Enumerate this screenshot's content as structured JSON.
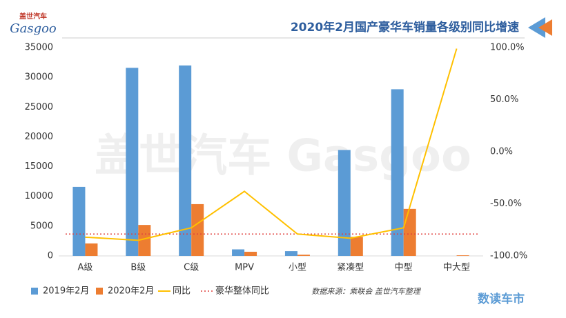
{
  "chart_data": {
    "type": "bar_line",
    "title": "2020年2月国产豪华车销量各级别同比增速",
    "logo": "盖世汽车",
    "logo_sub": "Gasgoo",
    "watermark": "盖世汽车 Gasgoo",
    "source": "数据来源：乘联会    盖世汽车整理",
    "brand": "数读车市",
    "categories": [
      "A级",
      "B级",
      "C级",
      "MPV",
      "小型",
      "紧凑型",
      "中型",
      "中大型"
    ],
    "series": [
      {
        "name": "2019年2月",
        "color": "#5b9bd5",
        "kind": "bar",
        "values": [
          11600,
          31600,
          32000,
          1100,
          800,
          17800,
          28000,
          0
        ]
      },
      {
        "name": "2020年2月",
        "color": "#ed7d31",
        "kind": "bar",
        "values": [
          2100,
          5200,
          8700,
          700,
          200,
          3200,
          7900,
          100
        ]
      },
      {
        "name": "同比",
        "color": "#ffc000",
        "kind": "line",
        "axis": "y2",
        "values": [
          -82,
          -85,
          -73,
          -38,
          -79,
          -83,
          -73,
          99
        ]
      }
    ],
    "reference_line": {
      "name": "豪华整体同比",
      "color": "#e0403d",
      "axis": "y2",
      "value": -79
    },
    "ylim": [
      0,
      35000
    ],
    "yticks": [
      0,
      5000,
      10000,
      15000,
      20000,
      25000,
      30000,
      35000
    ],
    "y2lim": [
      -100,
      100
    ],
    "y2ticks": [
      {
        "value": -100,
        "label": "-100.0%"
      },
      {
        "value": -50,
        "label": "-50.0%"
      },
      {
        "value": 0,
        "label": "0.0%"
      },
      {
        "value": 50,
        "label": "50.0%"
      },
      {
        "value": 100,
        "label": "100.0%"
      }
    ],
    "legend": "bottom-left"
  }
}
